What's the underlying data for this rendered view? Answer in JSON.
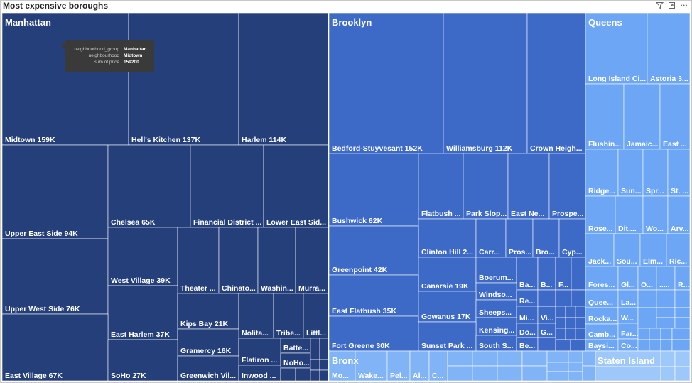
{
  "title": "Most expensive boroughs",
  "tooltip": {
    "rows": [
      {
        "k": "neighbourhood_group",
        "v": "Manhattan"
      },
      {
        "k": "neighbourhood",
        "v": "Midtown"
      },
      {
        "k": "Sum of price",
        "v": "159200"
      }
    ]
  },
  "colors": {
    "Manhattan": "#243f7a",
    "Brooklyn": "#3d6ac7",
    "Queens": "#6ca6f5",
    "Bronx": "#80b4f7",
    "Staten Island": "#9fc8fa",
    "border": "#ffffff"
  },
  "chart_data": {
    "type": "treemap",
    "title": "Most expensive boroughs",
    "groups": [
      "Manhattan",
      "Brooklyn",
      "Queens",
      "Bronx",
      "Staten Island"
    ],
    "labeled_cells": [
      {
        "group": "Manhattan",
        "label": "Midtown 159K"
      },
      {
        "group": "Manhattan",
        "label": "Hell's Kitchen 137K"
      },
      {
        "group": "Manhattan",
        "label": "Harlem 114K"
      },
      {
        "group": "Manhattan",
        "label": "Upper East Side 94K"
      },
      {
        "group": "Manhattan",
        "label": "Chelsea 65K"
      },
      {
        "group": "Manhattan",
        "label": "Financial District ..."
      },
      {
        "group": "Manhattan",
        "label": "Lower East Sid..."
      },
      {
        "group": "Manhattan",
        "label": "Upper West Side 76K"
      },
      {
        "group": "Manhattan",
        "label": "West Village 39K"
      },
      {
        "group": "Manhattan",
        "label": "Theater ..."
      },
      {
        "group": "Manhattan",
        "label": "Chinato..."
      },
      {
        "group": "Manhattan",
        "label": "Washin..."
      },
      {
        "group": "Manhattan",
        "label": "Murra..."
      },
      {
        "group": "Manhattan",
        "label": "East Harlem 37K"
      },
      {
        "group": "Manhattan",
        "label": "Kips Bay 21K"
      },
      {
        "group": "Manhattan",
        "label": "Nolita..."
      },
      {
        "group": "Manhattan",
        "label": "Tribe..."
      },
      {
        "group": "Manhattan",
        "label": "Littl..."
      },
      {
        "group": "Manhattan",
        "label": "Gramercy 16K"
      },
      {
        "group": "Manhattan",
        "label": "Batte..."
      },
      {
        "group": "Manhattan",
        "label": "Flatiron ..."
      },
      {
        "group": "Manhattan",
        "label": "NoHo..."
      },
      {
        "group": "Manhattan",
        "label": "East Village 67K"
      },
      {
        "group": "Manhattan",
        "label": "SoHo 27K"
      },
      {
        "group": "Manhattan",
        "label": "Greenwich Vil..."
      },
      {
        "group": "Manhattan",
        "label": "Inwood ..."
      },
      {
        "group": "Brooklyn",
        "label": "Bedford-Stuyvesant 152K"
      },
      {
        "group": "Brooklyn",
        "label": "Williamsburg 112K"
      },
      {
        "group": "Brooklyn",
        "label": "Crown Heigh..."
      },
      {
        "group": "Brooklyn",
        "label": "Bushwick 62K"
      },
      {
        "group": "Brooklyn",
        "label": "Flatbush ..."
      },
      {
        "group": "Brooklyn",
        "label": "Park Slop..."
      },
      {
        "group": "Brooklyn",
        "label": "East Ne..."
      },
      {
        "group": "Brooklyn",
        "label": "Prospe..."
      },
      {
        "group": "Brooklyn",
        "label": "Clinton Hill 2..."
      },
      {
        "group": "Brooklyn",
        "label": "Carr..."
      },
      {
        "group": "Brooklyn",
        "label": "Pros..."
      },
      {
        "group": "Brooklyn",
        "label": "Bro..."
      },
      {
        "group": "Brooklyn",
        "label": "Cyp..."
      },
      {
        "group": "Brooklyn",
        "label": "Greenpoint 42K"
      },
      {
        "group": "Brooklyn",
        "label": "Canarsie 19K"
      },
      {
        "group": "Brooklyn",
        "label": "Boerum..."
      },
      {
        "group": "Brooklyn",
        "label": "Ba..."
      },
      {
        "group": "Brooklyn",
        "label": "B..."
      },
      {
        "group": "Brooklyn",
        "label": "F..."
      },
      {
        "group": "Brooklyn",
        "label": "Windso..."
      },
      {
        "group": "Brooklyn",
        "label": "Re..."
      },
      {
        "group": "Brooklyn",
        "label": "East Flatbush 35K"
      },
      {
        "group": "Brooklyn",
        "label": "Gowanus 17K"
      },
      {
        "group": "Brooklyn",
        "label": "Sheeps..."
      },
      {
        "group": "Brooklyn",
        "label": "Mi..."
      },
      {
        "group": "Brooklyn",
        "label": "Vi..."
      },
      {
        "group": "Brooklyn",
        "label": "Kensing..."
      },
      {
        "group": "Brooklyn",
        "label": "Do..."
      },
      {
        "group": "Brooklyn",
        "label": "G..."
      },
      {
        "group": "Brooklyn",
        "label": "Fort Greene 30K"
      },
      {
        "group": "Brooklyn",
        "label": "Sunset Park ..."
      },
      {
        "group": "Brooklyn",
        "label": "South S..."
      },
      {
        "group": "Brooklyn",
        "label": "Be..."
      },
      {
        "group": "Queens",
        "label": "Long Island Ci..."
      },
      {
        "group": "Queens",
        "label": "Astoria 3..."
      },
      {
        "group": "Queens",
        "label": "Flushin..."
      },
      {
        "group": "Queens",
        "label": "Jamaic..."
      },
      {
        "group": "Queens",
        "label": "East ..."
      },
      {
        "group": "Queens",
        "label": "Ridge..."
      },
      {
        "group": "Queens",
        "label": "Sun..."
      },
      {
        "group": "Queens",
        "label": "Spr..."
      },
      {
        "group": "Queens",
        "label": "St. ..."
      },
      {
        "group": "Queens",
        "label": "Rose..."
      },
      {
        "group": "Queens",
        "label": "Dit...."
      },
      {
        "group": "Queens",
        "label": "Wo..."
      },
      {
        "group": "Queens",
        "label": "Arv..."
      },
      {
        "group": "Queens",
        "label": "Jack..."
      },
      {
        "group": "Queens",
        "label": "Sou..."
      },
      {
        "group": "Queens",
        "label": "Elm..."
      },
      {
        "group": "Queens",
        "label": "Ric..."
      },
      {
        "group": "Queens",
        "label": "Fores..."
      },
      {
        "group": "Queens",
        "label": "Gl..."
      },
      {
        "group": "Queens",
        "label": "O..."
      },
      {
        "group": "Queens",
        "label": "....."
      },
      {
        "group": "Queens",
        "label": "R..."
      },
      {
        "group": "Queens",
        "label": "Quee..."
      },
      {
        "group": "Queens",
        "label": "La..."
      },
      {
        "group": "Queens",
        "label": "Rocka..."
      },
      {
        "group": "Queens",
        "label": "W..."
      },
      {
        "group": "Queens",
        "label": "Camb..."
      },
      {
        "group": "Queens",
        "label": "Far..."
      },
      {
        "group": "Queens",
        "label": "Baysi..."
      },
      {
        "group": "Queens",
        "label": "Co..."
      },
      {
        "group": "Bronx",
        "label": "Mo..."
      },
      {
        "group": "Bronx",
        "label": "Wake..."
      },
      {
        "group": "Bronx",
        "label": "Pel..."
      },
      {
        "group": "Bronx",
        "label": "Al..."
      },
      {
        "group": "Bronx",
        "label": "C..."
      }
    ]
  }
}
